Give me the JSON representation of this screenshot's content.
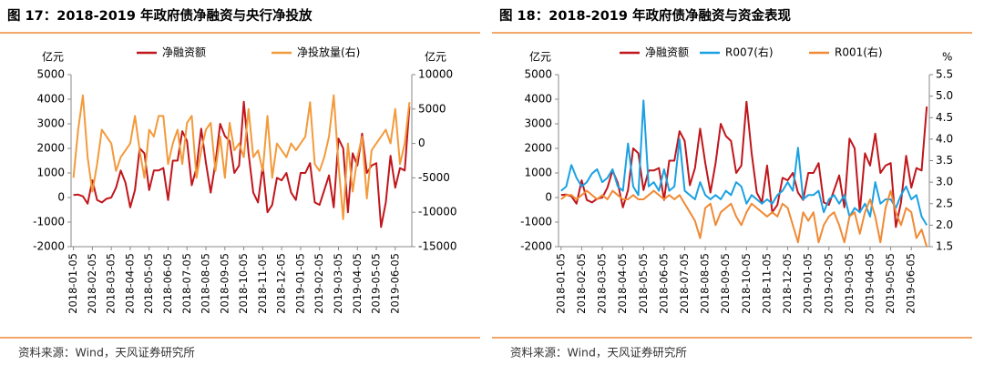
{
  "chart_data": [
    {
      "type": "line",
      "title": "图 17：2018-2019 年政府债净融资与央行净投放",
      "source": "资料来源：Wind，天风证券研究所",
      "y_label": "亿元",
      "y2_label": "亿元",
      "categories": [
        "2018-01-05",
        null,
        null,
        null,
        "2018-02-05",
        null,
        null,
        null,
        "2018-03-05",
        null,
        null,
        null,
        "2018-04-05",
        null,
        null,
        null,
        "2018-05-05",
        null,
        null,
        null,
        "2018-06-05",
        null,
        null,
        null,
        "2018-07-05",
        null,
        null,
        null,
        "2018-08-05",
        null,
        null,
        null,
        "2018-09-05",
        null,
        null,
        null,
        "2018-10-05",
        null,
        null,
        null,
        "2018-11-05",
        null,
        null,
        null,
        "2018-12-05",
        null,
        null,
        null,
        "2019-01-05",
        null,
        null,
        null,
        "2019-02-05",
        null,
        null,
        null,
        "2019-03-05",
        null,
        null,
        null,
        "2019-04-05",
        null,
        null,
        null,
        "2019-05-05",
        null,
        null,
        null,
        "2019-06-05",
        null,
        null,
        null
      ],
      "series": [
        {
          "name": "净融资额",
          "color": "#c0161c",
          "values": [
            100,
            120,
            50,
            -250,
            700,
            -100,
            -200,
            -50,
            0,
            400,
            1100,
            600,
            -400,
            300,
            2000,
            1800,
            300,
            1100,
            1100,
            1200,
            -100,
            1500,
            1500,
            2700,
            2300,
            500,
            1200,
            2800,
            1400,
            200,
            1400,
            3000,
            2500,
            2300,
            1000,
            1300,
            3900,
            1800,
            200,
            -200,
            1300,
            -600,
            -300,
            800,
            700,
            1000,
            200,
            -100,
            1000,
            1000,
            1400,
            -200,
            -300,
            300,
            900,
            -400,
            2400,
            2000,
            -600,
            1800,
            1300,
            2600,
            1000,
            1300,
            1400,
            -1200,
            -200,
            1700,
            400,
            1200,
            1100,
            3700
          ]
        },
        {
          "name": "净投放量(右)",
          "color": "#f39a3b",
          "axis": "y2",
          "values": [
            -5000,
            2000,
            7000,
            -2000,
            -7000,
            -3000,
            2000,
            1000,
            0,
            -4000,
            -2000,
            -1000,
            0,
            4000,
            -1000,
            -5000,
            2000,
            1000,
            4000,
            4000,
            -3000,
            0,
            2000,
            -3000,
            3000,
            4000,
            -5000,
            -1000,
            2000,
            3000,
            -4000,
            1000,
            -5000,
            3000,
            -1000,
            0,
            -2000,
            5000,
            -2000,
            -1000,
            -4000,
            4000,
            -5000,
            0,
            -1000,
            -2000,
            0,
            -1000,
            0,
            1000,
            6000,
            -3000,
            -4000,
            -2000,
            1000,
            7000,
            -3000,
            -11000,
            0,
            -7000,
            -2000,
            1000,
            -8000,
            -1000,
            0,
            1000,
            2000,
            0,
            5000,
            -3000,
            0,
            6000
          ]
        }
      ],
      "ylim": [
        -2000,
        5000
      ],
      "yticks": [
        -2000,
        -1000,
        0,
        1000,
        2000,
        3000,
        4000,
        5000
      ],
      "y2lim": [
        -15000,
        10000
      ],
      "y2ticks": [
        -15000,
        -10000,
        -5000,
        0,
        5000,
        10000
      ],
      "grid": false
    },
    {
      "type": "line",
      "title": "图 18：2018-2019 年政府债净融资与资金表现",
      "source": "资料来源：Wind，天风证券研究所",
      "y_label": "亿元",
      "y2_label": "%",
      "categories": [
        "2018-01-05",
        null,
        null,
        null,
        "2018-02-05",
        null,
        null,
        null,
        "2018-03-05",
        null,
        null,
        null,
        "2018-04-05",
        null,
        null,
        null,
        "2018-05-05",
        null,
        null,
        null,
        "2018-06-05",
        null,
        null,
        null,
        "2018-07-05",
        null,
        null,
        null,
        "2018-08-05",
        null,
        null,
        null,
        "2018-09-05",
        null,
        null,
        null,
        "2018-10-05",
        null,
        null,
        null,
        "2018-11-05",
        null,
        null,
        null,
        "2018-12-05",
        null,
        null,
        null,
        "2019-01-05",
        null,
        null,
        null,
        "2019-02-05",
        null,
        null,
        null,
        "2019-03-05",
        null,
        null,
        null,
        "2019-04-05",
        null,
        null,
        null,
        "2019-05-05",
        null,
        null,
        null,
        "2019-06-05",
        null,
        null,
        null
      ],
      "series": [
        {
          "name": "净融资额",
          "color": "#c0161c",
          "values": [
            100,
            120,
            50,
            -250,
            700,
            -100,
            -200,
            -50,
            0,
            400,
            1100,
            600,
            -400,
            300,
            2000,
            1800,
            300,
            1100,
            1100,
            1200,
            -100,
            1500,
            1500,
            2700,
            2300,
            500,
            1200,
            2800,
            1400,
            200,
            1400,
            3000,
            2500,
            2300,
            1000,
            1300,
            3900,
            1800,
            200,
            -200,
            1300,
            -600,
            -300,
            800,
            700,
            1000,
            200,
            -100,
            1000,
            1000,
            1400,
            -200,
            -300,
            300,
            900,
            -400,
            2400,
            2000,
            -600,
            1800,
            1300,
            2600,
            1000,
            1300,
            1400,
            -1200,
            -200,
            1700,
            400,
            1200,
            1100,
            3700
          ]
        },
        {
          "name": "R007(右)",
          "color": "#1ba1e2",
          "axis": "y2",
          "values": [
            2.8,
            2.9,
            3.4,
            3.1,
            2.9,
            3.0,
            3.2,
            3.3,
            3.0,
            3.1,
            3.3,
            2.9,
            2.8,
            3.9,
            2.9,
            2.7,
            4.9,
            2.9,
            3.0,
            2.8,
            3.3,
            2.8,
            2.9,
            4.0,
            2.8,
            2.7,
            2.6,
            3.0,
            2.7,
            2.6,
            2.7,
            2.6,
            2.8,
            2.7,
            3.0,
            2.9,
            2.5,
            2.7,
            2.6,
            2.5,
            2.6,
            2.5,
            2.7,
            2.8,
            3.0,
            2.8,
            3.8,
            2.6,
            2.7,
            2.7,
            2.8,
            2.3,
            2.6,
            2.7,
            2.5,
            2.7,
            2.2,
            2.4,
            2.3,
            2.5,
            2.2,
            3.0,
            2.5,
            2.6,
            2.6,
            2.4,
            2.7,
            2.9,
            2.6,
            2.7,
            2.2,
            2.0
          ]
        },
        {
          "name": "R001(右)",
          "color": "#f08a36",
          "axis": "y2",
          "values": [
            2.6,
            2.7,
            2.7,
            2.6,
            2.7,
            2.8,
            2.7,
            2.6,
            2.7,
            2.6,
            2.8,
            2.7,
            2.6,
            2.6,
            2.7,
            2.6,
            2.6,
            2.7,
            2.8,
            2.7,
            2.6,
            2.7,
            2.6,
            2.7,
            2.5,
            2.3,
            2.1,
            1.7,
            2.4,
            2.5,
            2.0,
            2.3,
            2.4,
            2.5,
            2.2,
            2.0,
            2.3,
            2.5,
            2.4,
            2.3,
            2.2,
            2.3,
            2.2,
            2.5,
            2.4,
            2.0,
            1.6,
            2.3,
            2.1,
            2.3,
            1.6,
            2.0,
            2.2,
            2.3,
            2.0,
            1.6,
            2.2,
            2.3,
            1.8,
            2.3,
            2.6,
            2.2,
            1.6,
            2.4,
            2.8,
            2.3,
            2.0,
            2.4,
            2.3,
            1.7,
            1.9,
            1.5
          ]
        }
      ],
      "ylim": [
        -2000,
        5000
      ],
      "yticks": [
        -2000,
        -1000,
        0,
        1000,
        2000,
        3000,
        4000,
        5000
      ],
      "y2lim": [
        1.5,
        5.5
      ],
      "y2ticks": [
        1.5,
        {
          "value": 2,
          "label": "2.0"
        },
        2.5,
        {
          "value": 3,
          "label": "3.0"
        },
        3.5,
        {
          "value": 4,
          "label": "4.0"
        },
        4.5,
        {
          "value": 5,
          "label": "5.0"
        },
        5.5
      ],
      "grid": false
    }
  ]
}
